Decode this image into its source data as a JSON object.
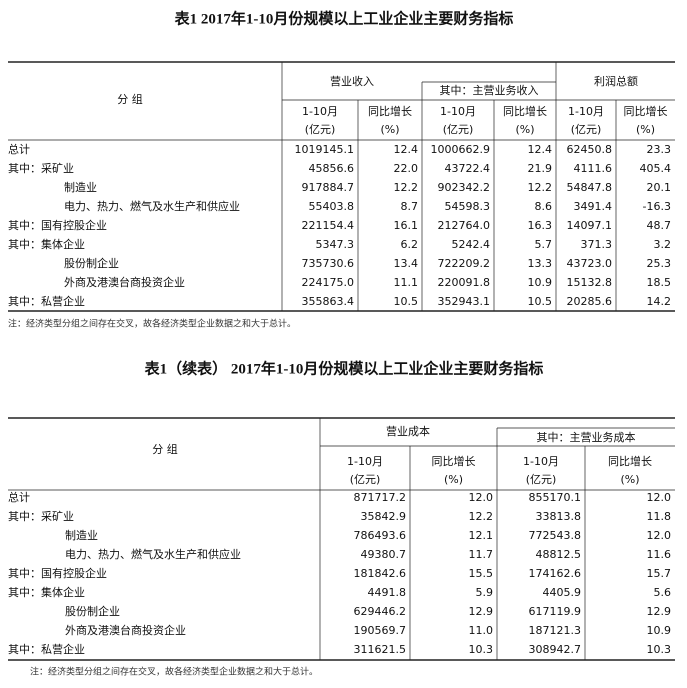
{
  "table1": {
    "title": "表1  2017年1-10月份规模以上工业企业主要财务指标",
    "header": {
      "group": "分  组",
      "revenue": "营业收入",
      "main_revenue": "其中：主营业务收入",
      "profit": "利润总额"
    },
    "columns": [
      {
        "period": "1-10月",
        "unit": "(亿元)"
      },
      {
        "period": "同比增长",
        "unit": "(%)"
      },
      {
        "period": "1-10月",
        "unit": "(亿元)"
      },
      {
        "period": "同比增长",
        "unit": "(%)"
      },
      {
        "period": "1-10月",
        "unit": "(亿元)"
      },
      {
        "period": "同比增长",
        "unit": "(%)"
      }
    ],
    "rows": [
      {
        "label": "总计",
        "values": [
          "1019145.1",
          "12.4",
          "1000662.9",
          "12.4",
          "62450.8",
          "23.3"
        ]
      },
      {
        "label": "其中：采矿业",
        "values": [
          "45856.6",
          "22.0",
          "43722.4",
          "21.9",
          "4111.6",
          "405.4"
        ]
      },
      {
        "label": "制造业",
        "values": [
          "917884.7",
          "12.2",
          "902342.2",
          "12.2",
          "54847.8",
          "20.1"
        ]
      },
      {
        "label": "电力、热力、燃气及水生产和供应业",
        "values": [
          "55403.8",
          "8.7",
          "54598.3",
          "8.6",
          "3491.4",
          "-16.3"
        ]
      },
      {
        "label": "其中：国有控股企业",
        "values": [
          "221154.4",
          "16.1",
          "212764.0",
          "16.3",
          "14097.1",
          "48.7"
        ]
      },
      {
        "label": "其中：集体企业",
        "values": [
          "5347.3",
          "6.2",
          "5242.4",
          "5.7",
          "371.3",
          "3.2"
        ]
      },
      {
        "label": "股份制企业",
        "values": [
          "735730.6",
          "13.4",
          "722209.2",
          "13.3",
          "43723.0",
          "25.3"
        ]
      },
      {
        "label": "外商及港澳台商投资企业",
        "values": [
          "224175.0",
          "11.1",
          "220091.8",
          "10.9",
          "15132.8",
          "18.5"
        ]
      },
      {
        "label": "其中：私营企业",
        "values": [
          "355863.4",
          "10.5",
          "352943.1",
          "10.5",
          "20285.6",
          "14.2"
        ]
      }
    ],
    "note": "注：经济类型分组之间存在交叉，故各经济类型企业数据之和大于总计。"
  },
  "table2": {
    "title": "表1（续表） 2017年1-10月份规模以上工业企业主要财务指标",
    "header": {
      "group": "分  组",
      "cost": "营业成本",
      "main_cost": "其中：主营业务成本"
    },
    "columns": [
      {
        "period": "1-10月",
        "unit": "(亿元)"
      },
      {
        "period": "同比增长",
        "unit": "(%)"
      },
      {
        "period": "1-10月",
        "unit": "(亿元)"
      },
      {
        "period": "同比增长",
        "unit": "(%)"
      }
    ],
    "rows": [
      {
        "label": "总计",
        "values": [
          "871717.2",
          "12.0",
          "855170.1",
          "12.0"
        ]
      },
      {
        "label": "其中：采矿业",
        "values": [
          "35842.9",
          "12.2",
          "33813.8",
          "11.8"
        ]
      },
      {
        "label": "制造业",
        "values": [
          "786493.6",
          "12.1",
          "772543.8",
          "12.0"
        ]
      },
      {
        "label": "电力、热力、燃气及水生产和供应业",
        "values": [
          "49380.7",
          "11.7",
          "48812.5",
          "11.6"
        ]
      },
      {
        "label": "其中：国有控股企业",
        "values": [
          "181842.6",
          "15.5",
          "174162.6",
          "15.7"
        ]
      },
      {
        "label": "其中：集体企业",
        "values": [
          "4491.8",
          "5.9",
          "4405.9",
          "5.6"
        ]
      },
      {
        "label": "股份制企业",
        "values": [
          "629446.2",
          "12.9",
          "617119.9",
          "12.9"
        ]
      },
      {
        "label": "外商及港澳台商投资企业",
        "values": [
          "190569.7",
          "11.0",
          "187121.3",
          "10.9"
        ]
      },
      {
        "label": "其中：私营企业",
        "values": [
          "311621.5",
          "10.3",
          "308942.7",
          "10.3"
        ]
      }
    ],
    "note": "注：经济类型分组之间存在交叉，故各经济类型企业数据之和大于总计。"
  }
}
